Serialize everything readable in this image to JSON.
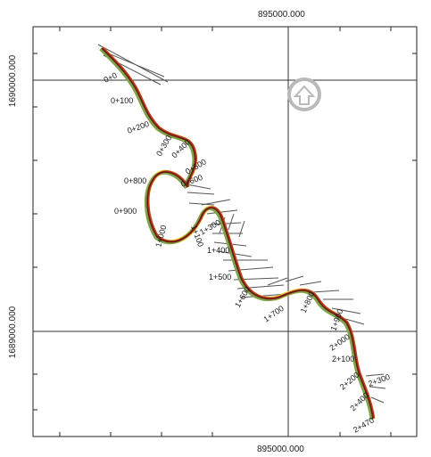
{
  "coord_labels": {
    "x_top": "895000.000",
    "x_bottom": "895000.000",
    "y_upper": "1690000.000",
    "y_lower": "1689000.000"
  },
  "chainage_labels": [
    "0+0",
    "0+100",
    "0+200",
    "0+300",
    "0+400",
    "0+500",
    "0+600",
    "0+800",
    "0+900",
    "1+000",
    "1+100",
    "1+300",
    "1+400",
    "1+500",
    "1+600",
    "1+700",
    "1+800",
    "1+900",
    "2+000",
    "2+100",
    "2+200",
    "2+300",
    "2+400",
    "2+470"
  ],
  "icons": {
    "north_arrow": "up-arrow-icon"
  },
  "colors": {
    "grid": "#333333",
    "frame": "#222222",
    "river_core": "#6b1b0e",
    "river_edge_red": "#c0392b",
    "river_edge_yellow": "#e8d13a",
    "river_edge_green": "#7fa34a",
    "sections": "#555555",
    "north_arrow": "#b9b9b9"
  }
}
